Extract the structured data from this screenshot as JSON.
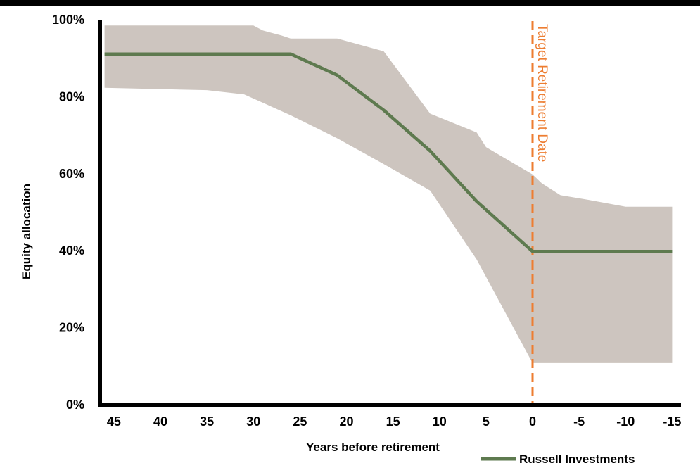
{
  "chart_data": {
    "type": "area",
    "xlabel": "Years before retirement",
    "ylabel": "Equity allocation",
    "x_ticks": [
      45,
      40,
      35,
      30,
      25,
      20,
      15,
      10,
      5,
      0,
      -5,
      -10,
      -15
    ],
    "x_tick_labels": [
      "45",
      "40",
      "35",
      "30",
      "25",
      "20",
      "15",
      "10",
      "5",
      "0",
      "-5",
      "-10",
      "-15"
    ],
    "y_ticks": [
      0,
      20,
      40,
      60,
      80,
      100
    ],
    "y_tick_labels": [
      "0%",
      "20%",
      "40%",
      "60%",
      "80%",
      "100%"
    ],
    "xlim": [
      46.5,
      -15.5
    ],
    "ylim": [
      0,
      100
    ],
    "x_reversed": true,
    "grid": false,
    "legend_position": "bottom-right",
    "colors": {
      "band": "#cdc5bf",
      "line": "#5e7a4f",
      "target": "#ed7d31",
      "axis": "#000000"
    },
    "band": {
      "upper": [
        [
          46,
          98.5
        ],
        [
          30,
          98.5
        ],
        [
          29,
          97.2
        ],
        [
          27,
          95.9
        ],
        [
          26,
          95.1
        ],
        [
          21,
          95.1
        ],
        [
          16,
          91.8
        ],
        [
          11,
          75.6
        ],
        [
          6,
          70.7
        ],
        [
          5,
          66.9
        ],
        [
          0,
          59.8
        ],
        [
          -1,
          57.5
        ],
        [
          -3,
          54.4
        ],
        [
          -6,
          53.2
        ],
        [
          -10,
          51.4
        ],
        [
          -15,
          51.4
        ]
      ],
      "lower": [
        [
          46,
          82.3
        ],
        [
          35,
          81.7
        ],
        [
          31,
          80.6
        ],
        [
          26,
          75.2
        ],
        [
          21,
          69.2
        ],
        [
          16,
          62.5
        ],
        [
          11,
          55.6
        ],
        [
          6,
          37.7
        ],
        [
          0,
          10.8
        ],
        [
          -15,
          10.8
        ]
      ]
    },
    "series": [
      {
        "name": "Russell Investments",
        "x": [
          46,
          26,
          21,
          16,
          11,
          6,
          0,
          -15
        ],
        "y": [
          91.1,
          91.1,
          85.6,
          76.5,
          65.9,
          52.8,
          39.8,
          39.8
        ]
      }
    ],
    "target_line": {
      "x": 0,
      "label": "Target Retirement Date"
    }
  }
}
